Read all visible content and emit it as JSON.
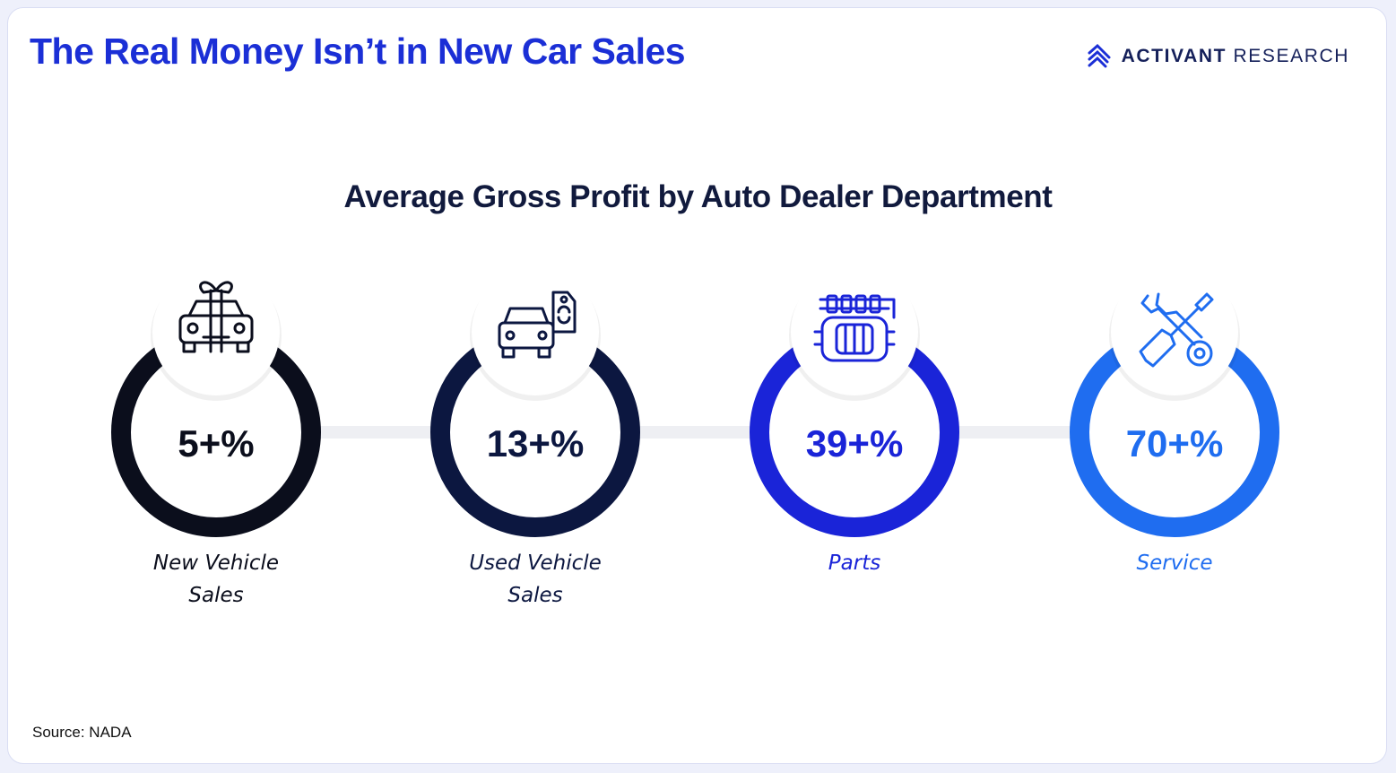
{
  "header": {
    "title": "The Real Money Isn’t in New Car Sales",
    "brand_bold": "ACTIVANT",
    "brand_light": "RESEARCH"
  },
  "footer": {
    "source": "Source: NADA"
  },
  "chart_data": {
    "type": "bar",
    "title": "Average Gross Profit by Auto Dealer Department",
    "unit": "%",
    "categories": [
      {
        "name": "New Vehicle Sales",
        "lines": [
          "New Vehicle",
          "Sales"
        ],
        "value": 5,
        "label": "5+%",
        "color": "#0b0e1c",
        "icon": "gift-car-icon"
      },
      {
        "name": "Used Vehicle Sales",
        "lines": [
          "Used Vehicle",
          "Sales"
        ],
        "value": 13,
        "label": "13+%",
        "color": "#0c1740",
        "icon": "car-price-tag-icon"
      },
      {
        "name": "Parts",
        "lines": [
          "Parts"
        ],
        "value": 39,
        "label": "39+%",
        "color": "#1a24d8",
        "icon": "engine-icon"
      },
      {
        "name": "Service",
        "lines": [
          "Service"
        ],
        "value": 70,
        "label": "70+%",
        "color": "#1f6df0",
        "icon": "wrench-screwdriver-icon"
      }
    ],
    "grid": false,
    "legend": "none"
  }
}
